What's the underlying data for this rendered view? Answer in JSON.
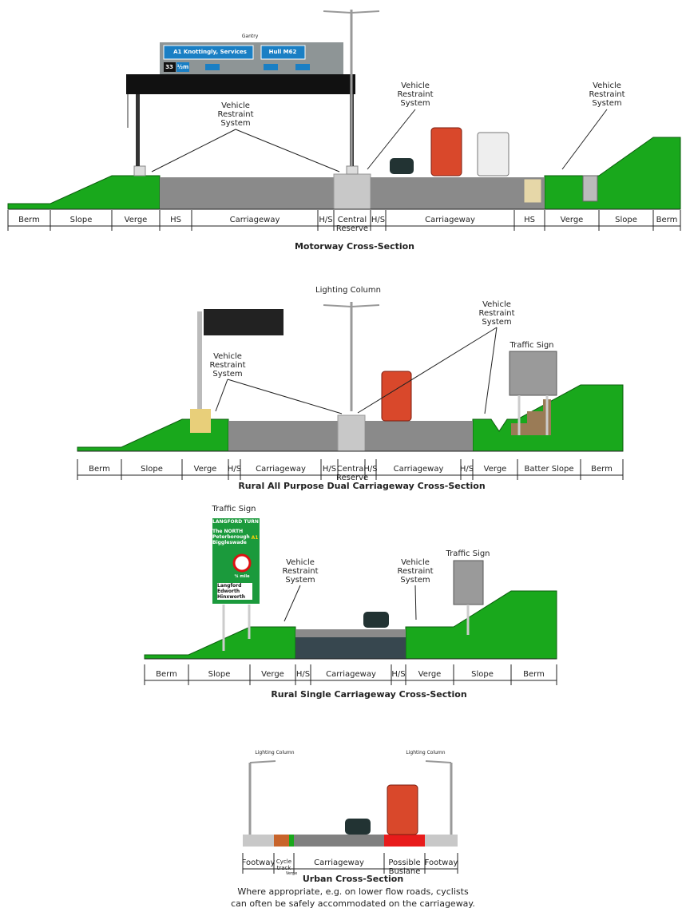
{
  "motorway": {
    "title": "Motorway Cross-Section",
    "gantry_label": "Gantry",
    "sign": {
      "left": "A1 Knottingly, Services",
      "right": "Hull M62",
      "junction": "33",
      "distance": "½m"
    },
    "annotations": [
      "Vehicle Restraint System",
      "Vehicle Restraint System",
      "Vehicle Restraint System"
    ],
    "segments": [
      "Berm",
      "Slope",
      "Verge",
      "HS",
      "Carriageway",
      "H/S",
      "Central Reserve",
      "H/S",
      "Carriageway",
      "HS",
      "Verge",
      "Slope",
      "Berm"
    ]
  },
  "rural_dual": {
    "title": "Rural All Purpose Dual Carriageway Cross-Section",
    "lighting_column": "Lighting Column",
    "traffic_sign": "Traffic Sign",
    "annotations": [
      "Vehicle Restraint System",
      "Vehicle Restraint System"
    ],
    "segments": [
      "Berm",
      "Slope",
      "Verge",
      "H/S",
      "Carriageway",
      "H/S",
      "Central Reserve",
      "H/S",
      "Carriageway",
      "H/S",
      "Verge",
      "Batter Slope",
      "Berm"
    ]
  },
  "rural_single": {
    "title": "Rural Single Carriageway Cross-Section",
    "traffic_signs": [
      "Traffic Sign",
      "Traffic Sign"
    ],
    "annotations": [
      "Vehicle Restraint System",
      "Vehicle Restraint System"
    ],
    "direction_sign": {
      "header": "LANGFORD TURN",
      "lines": [
        "The NORTH",
        "Peterborough",
        "Biggleswade"
      ],
      "route": "A1",
      "distance": "¼ mile",
      "places": [
        "Langford",
        "Edworth",
        "Hinxworth"
      ]
    },
    "segments": [
      "Berm",
      "Slope",
      "Verge",
      "H/S",
      "Carriageway",
      "H/S",
      "Verge",
      "Slope",
      "Berm"
    ]
  },
  "urban": {
    "title": "Urban Cross-Section",
    "lighting_columns": [
      "Lighting Column",
      "Lighting Column"
    ],
    "segments": [
      "Footway",
      "Cycle track",
      "Carriageway",
      "Possible Buslane",
      "Footway"
    ],
    "verge_label": "Verge",
    "note": [
      "Where appropriate, e.g. on lower flow roads, cyclists",
      "can often be safely accommodated on the carriageway."
    ]
  }
}
